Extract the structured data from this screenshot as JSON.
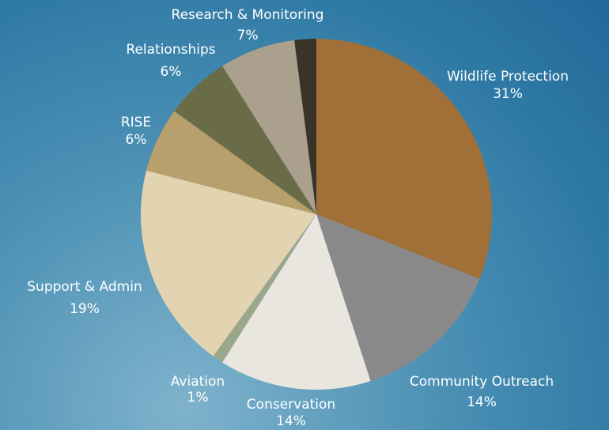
{
  "chart_data": {
    "type": "pie",
    "title": "",
    "slices": [
      {
        "label": "Wildlife Protection",
        "value": 31,
        "display": "31%",
        "color": "#a16f38"
      },
      {
        "label": "Community Outreach",
        "value": 14,
        "display": "14%",
        "color": "#898989"
      },
      {
        "label": "Conservation",
        "value": 14,
        "display": "14%",
        "color": "#e9e6df"
      },
      {
        "label": "Aviation",
        "value": 1,
        "display": "1%",
        "color": "#9aa78c"
      },
      {
        "label": "Support & Admin",
        "value": 19,
        "display": "19%",
        "color": "#e2d3b1"
      },
      {
        "label": "RISE",
        "value": 6,
        "display": "6%",
        "color": "#b7a06c"
      },
      {
        "label": "Relationships",
        "value": 6,
        "display": "6%",
        "color": "#6a6b47"
      },
      {
        "label": "Research & Monitoring",
        "value": 7,
        "display": "7%",
        "color": "#ab9f8d"
      },
      {
        "label": "",
        "value": 2,
        "display": "",
        "color": "#3a3428"
      }
    ]
  }
}
